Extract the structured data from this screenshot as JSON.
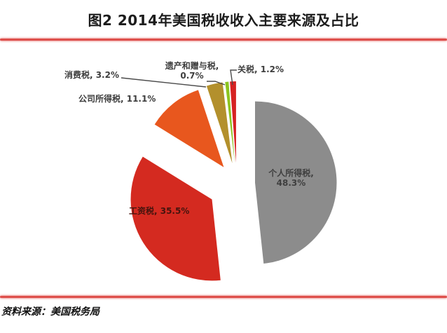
{
  "title": "图2 2014年美国税收收入主要来源及占比",
  "source": "资料来源：美国税务局",
  "colors": {
    "rule_red": "#DE4F4B",
    "leader_line": "#4a4a4a",
    "label_text": "#3d3d3d",
    "payroll_label_text": "#46140e",
    "background": "#ffffff"
  },
  "chart_data": {
    "type": "pie",
    "title": "图2 2014年美国税收收入主要来源及占比",
    "unit": "%",
    "start_angle_deg": 0,
    "direction": "clockwise",
    "exploded": true,
    "legend": "none",
    "slices": [
      {
        "id": "personal-income-tax",
        "label": "个人所得税",
        "value": 48.3,
        "color": "#8C8C8C",
        "explode": 26
      },
      {
        "id": "payroll-tax",
        "label": "工资税",
        "value": 35.5,
        "color": "#D42A20",
        "explode": 42
      },
      {
        "id": "corporate-income-tax",
        "label": "公司所得税",
        "value": 11.1,
        "color": "#E8571E",
        "explode": 30
      },
      {
        "id": "excise-tax",
        "label": "消费税",
        "value": 3.2,
        "color": "#B3902C",
        "explode": 30
      },
      {
        "id": "estate-gift-tax",
        "label": "遗产和赠与税",
        "value": 0.7,
        "color": "#8CC41F",
        "explode": 30
      },
      {
        "id": "customs-duties",
        "label": "关税",
        "value": 1.2,
        "color": "#D62222",
        "explode": 30
      }
    ]
  },
  "labels": {
    "xiaofeishui": "消费税, 3.2%",
    "yichan_line1": "遗产和赠与税,",
    "yichan_line2": "0.7%",
    "guanshui": "关税, 1.2%",
    "gongsi": "公司所得税, 11.1%",
    "geren_line1": "个人所得税,",
    "geren_line2": "48.3%",
    "gongzi": "工资税, 35.5%"
  }
}
